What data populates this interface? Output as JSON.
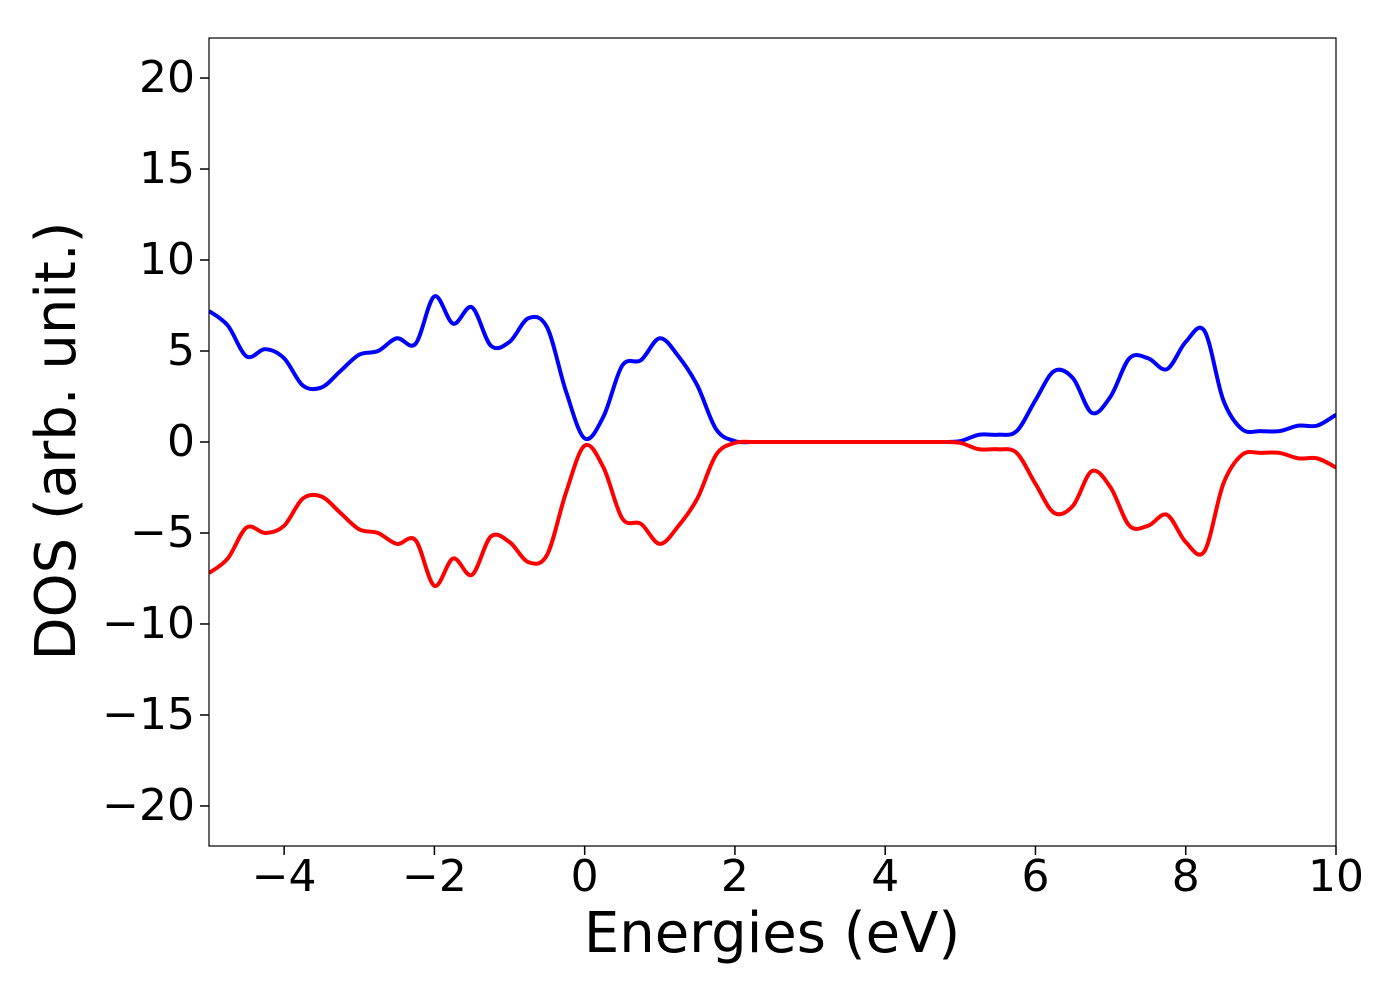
{
  "chart_data": {
    "type": "line",
    "x_label": "Energies (eV)",
    "y_label": "DOS (arb. unit.)",
    "x": [
      -5,
      -4.75,
      -4.5,
      -4.25,
      -4,
      -3.75,
      -3.5,
      -3.25,
      -3,
      -2.75,
      -2.5,
      -2.25,
      -2,
      -1.75,
      -1.5,
      -1.25,
      -1,
      -0.75,
      -0.5,
      -0.25,
      0,
      0.25,
      0.5,
      0.75,
      1,
      1.25,
      1.5,
      1.75,
      2,
      2.25,
      2.5,
      2.75,
      3,
      3.25,
      3.5,
      3.75,
      4,
      4.25,
      4.5,
      4.75,
      5,
      5.25,
      5.5,
      5.75,
      6,
      6.25,
      6.5,
      6.75,
      7,
      7.25,
      7.5,
      7.75,
      8,
      8.25,
      8.5,
      8.75,
      9,
      9.25,
      9.5,
      9.75,
      10
    ],
    "series": [
      {
        "color": "#0000ff",
        "values": [
          7.2,
          6.4,
          4.7,
          5.1,
          4.6,
          3.1,
          3.0,
          3.9,
          4.8,
          5.0,
          5.7,
          5.4,
          8.0,
          6.5,
          7.4,
          5.3,
          5.5,
          6.8,
          6.3,
          2.8,
          0.2,
          1.4,
          4.2,
          4.5,
          5.7,
          4.7,
          3.1,
          0.7,
          0.05,
          0,
          0,
          0,
          0,
          0,
          0,
          0,
          0,
          0,
          0,
          0,
          0.05,
          0.4,
          0.4,
          0.6,
          2.3,
          3.9,
          3.5,
          1.6,
          2.5,
          4.6,
          4.6,
          4.0,
          5.5,
          6.1,
          2.3,
          0.7,
          0.6,
          0.6,
          0.9,
          0.9,
          1.5
        ]
      },
      {
        "color": "#ff0000",
        "values": [
          -7.2,
          -6.4,
          -4.7,
          -5.0,
          -4.6,
          -3.1,
          -3.0,
          -3.9,
          -4.8,
          -5.0,
          -5.6,
          -5.4,
          -7.9,
          -6.4,
          -7.3,
          -5.2,
          -5.5,
          -6.6,
          -6.2,
          -2.8,
          -0.2,
          -1.4,
          -4.2,
          -4.5,
          -5.6,
          -4.6,
          -3.1,
          -0.7,
          -0.05,
          0,
          0,
          0,
          0,
          0,
          0,
          0,
          0,
          0,
          0,
          0,
          -0.05,
          -0.4,
          -0.4,
          -0.6,
          -2.3,
          -3.9,
          -3.5,
          -1.6,
          -2.5,
          -4.6,
          -4.6,
          -4.0,
          -5.5,
          -6.0,
          -2.3,
          -0.7,
          -0.6,
          -0.6,
          -0.9,
          -0.9,
          -1.4
        ]
      }
    ],
    "xlim": [
      -5,
      10
    ],
    "xticks": [
      {
        "value": -4,
        "label": "−4"
      },
      {
        "value": -2,
        "label": "−2"
      },
      0,
      2,
      4,
      6,
      8,
      10
    ],
    "ylim": [
      -22.2,
      22.2
    ],
    "yticks": [
      {
        "value": -20,
        "label": "−20"
      },
      {
        "value": -15,
        "label": "−15"
      },
      {
        "value": -10,
        "label": "−10"
      },
      {
        "value": -5,
        "label": "−5"
      },
      0,
      5,
      10,
      15,
      20
    ],
    "grid": false
  }
}
